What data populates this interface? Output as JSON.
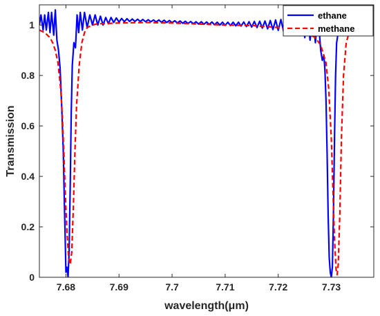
{
  "chart_data": {
    "type": "line",
    "title": "",
    "xlabel": "wavelength(μm)",
    "ylabel": "Transmission",
    "xlim": [
      7.675,
      7.738
    ],
    "ylim": [
      0,
      1.08
    ],
    "x_ticks": [
      {
        "value": 7.68,
        "label": "7.68"
      },
      {
        "value": 7.69,
        "label": "7.69"
      },
      {
        "value": 7.7,
        "label": "7.7"
      },
      {
        "value": 7.71,
        "label": "7.71"
      },
      {
        "value": 7.72,
        "label": "7.72"
      },
      {
        "value": 7.73,
        "label": "7.73"
      }
    ],
    "y_ticks": [
      {
        "value": 0,
        "label": "0"
      },
      {
        "value": 0.2,
        "label": "0.2"
      },
      {
        "value": 0.4,
        "label": "0.4"
      },
      {
        "value": 0.6,
        "label": "0.6"
      },
      {
        "value": 0.8,
        "label": "0.8"
      },
      {
        "value": 1,
        "label": "1"
      }
    ],
    "grid": false,
    "legend_position": "top-right",
    "series": [
      {
        "name": "ethane",
        "color": "#0000ff",
        "style": "solid",
        "points": [
          [
            7.675,
            1.0
          ],
          [
            7.6753,
            1.04
          ],
          [
            7.6757,
            0.98
          ],
          [
            7.676,
            1.04
          ],
          [
            7.6763,
            0.98
          ],
          [
            7.6767,
            1.05
          ],
          [
            7.677,
            0.97
          ],
          [
            7.6773,
            1.05
          ],
          [
            7.6777,
            0.96
          ],
          [
            7.678,
            1.06
          ],
          [
            7.6783,
            0.94
          ],
          [
            7.6786,
            0.9
          ],
          [
            7.6789,
            0.83
          ],
          [
            7.6792,
            0.68
          ],
          [
            7.6795,
            0.5
          ],
          [
            7.6797,
            0.3
          ],
          [
            7.6799,
            0.12
          ],
          [
            7.68,
            0.02
          ],
          [
            7.6802,
            0.04
          ],
          [
            7.6804,
            0.0
          ],
          [
            7.6806,
            0.1
          ],
          [
            7.6808,
            0.35
          ],
          [
            7.681,
            0.65
          ],
          [
            7.6812,
            0.84
          ],
          [
            7.6815,
            0.93
          ],
          [
            7.6818,
            0.91
          ],
          [
            7.6821,
            1.04
          ],
          [
            7.6824,
            0.97
          ],
          [
            7.6827,
            1.05
          ],
          [
            7.6831,
            0.98
          ],
          [
            7.6835,
            1.05
          ],
          [
            7.684,
            0.99
          ],
          [
            7.6845,
            1.04
          ],
          [
            7.685,
            1.0
          ],
          [
            7.6855,
            1.04
          ],
          [
            7.686,
            1.0
          ],
          [
            7.6865,
            1.035
          ],
          [
            7.687,
            1.0
          ],
          [
            7.6875,
            1.03
          ],
          [
            7.688,
            1.005
          ],
          [
            7.6885,
            1.03
          ],
          [
            7.689,
            1.01
          ],
          [
            7.6895,
            1.028
          ],
          [
            7.69,
            1.012
          ],
          [
            7.6905,
            1.026
          ],
          [
            7.691,
            1.013
          ],
          [
            7.6915,
            1.025
          ],
          [
            7.692,
            1.014
          ],
          [
            7.6925,
            1.024
          ],
          [
            7.693,
            1.014
          ],
          [
            7.6935,
            1.023
          ],
          [
            7.694,
            1.014
          ],
          [
            7.6945,
            1.022
          ],
          [
            7.695,
            1.013
          ],
          [
            7.6955,
            1.021
          ],
          [
            7.696,
            1.013
          ],
          [
            7.6965,
            1.02
          ],
          [
            7.697,
            1.012
          ],
          [
            7.6975,
            1.02
          ],
          [
            7.698,
            1.011
          ],
          [
            7.6985,
            1.019
          ],
          [
            7.699,
            1.01
          ],
          [
            7.6995,
            1.018
          ],
          [
            7.7,
            1.009
          ],
          [
            7.7005,
            1.017
          ],
          [
            7.701,
            1.008
          ],
          [
            7.7015,
            1.016
          ],
          [
            7.702,
            1.007
          ],
          [
            7.7025,
            1.015
          ],
          [
            7.703,
            1.006
          ],
          [
            7.7035,
            1.014
          ],
          [
            7.704,
            1.005
          ],
          [
            7.7045,
            1.013
          ],
          [
            7.705,
            1.004
          ],
          [
            7.7055,
            1.013
          ],
          [
            7.706,
            1.003
          ],
          [
            7.7065,
            1.012
          ],
          [
            7.707,
            1.002
          ],
          [
            7.7075,
            1.012
          ],
          [
            7.708,
            1.001
          ],
          [
            7.7085,
            1.011
          ],
          [
            7.709,
            1.0
          ],
          [
            7.7095,
            1.011
          ],
          [
            7.71,
            0.999
          ],
          [
            7.7105,
            1.011
          ],
          [
            7.711,
            0.998
          ],
          [
            7.7115,
            1.011
          ],
          [
            7.712,
            0.997
          ],
          [
            7.7125,
            1.011
          ],
          [
            7.713,
            0.996
          ],
          [
            7.7135,
            1.012
          ],
          [
            7.714,
            0.994
          ],
          [
            7.7145,
            1.013
          ],
          [
            7.715,
            0.992
          ],
          [
            7.7155,
            1.014
          ],
          [
            7.716,
            0.99
          ],
          [
            7.7165,
            1.015
          ],
          [
            7.717,
            0.988
          ],
          [
            7.7175,
            1.016
          ],
          [
            7.718,
            0.985
          ],
          [
            7.7185,
            1.018
          ],
          [
            7.719,
            0.982
          ],
          [
            7.7195,
            1.02
          ],
          [
            7.72,
            0.979
          ],
          [
            7.7205,
            1.022
          ],
          [
            7.721,
            0.975
          ],
          [
            7.7215,
            1.024
          ],
          [
            7.722,
            0.97
          ],
          [
            7.7225,
            1.026
          ],
          [
            7.723,
            0.965
          ],
          [
            7.7235,
            1.028
          ],
          [
            7.724,
            0.958
          ],
          [
            7.7245,
            1.03
          ],
          [
            7.725,
            0.95
          ],
          [
            7.7255,
            1.033
          ],
          [
            7.726,
            0.94
          ],
          [
            7.7265,
            1.036
          ],
          [
            7.727,
            0.93
          ],
          [
            7.7275,
            1.04
          ],
          [
            7.728,
            0.9
          ],
          [
            7.7283,
            0.86
          ],
          [
            7.7286,
            0.88
          ],
          [
            7.7288,
            0.82
          ],
          [
            7.729,
            0.7
          ],
          [
            7.7292,
            0.5
          ],
          [
            7.7294,
            0.25
          ],
          [
            7.7296,
            0.08
          ],
          [
            7.7298,
            0.02
          ],
          [
            7.73,
            0.0
          ],
          [
            7.7302,
            0.04
          ],
          [
            7.7304,
            0.25
          ],
          [
            7.7306,
            0.55
          ],
          [
            7.7308,
            0.8
          ],
          [
            7.731,
            0.93
          ],
          [
            7.7313,
            0.97
          ],
          [
            7.7316,
            1.03
          ],
          [
            7.7319,
            0.97
          ],
          [
            7.7322,
            1.03
          ],
          [
            7.7325,
            0.98
          ],
          [
            7.733,
            1.02
          ],
          [
            7.7335,
            0.99
          ],
          [
            7.734,
            1.015
          ],
          [
            7.7345,
            0.995
          ],
          [
            7.735,
            1.01
          ],
          [
            7.736,
            1.0
          ],
          [
            7.737,
            1.005
          ],
          [
            7.738,
            1.0
          ]
        ]
      },
      {
        "name": "methane",
        "color": "#ff0000",
        "style": "dashed",
        "points": [
          [
            7.675,
            0.98
          ],
          [
            7.6755,
            0.975
          ],
          [
            7.676,
            0.97
          ],
          [
            7.6765,
            0.96
          ],
          [
            7.677,
            0.95
          ],
          [
            7.6775,
            0.93
          ],
          [
            7.678,
            0.9
          ],
          [
            7.6785,
            0.85
          ],
          [
            7.679,
            0.75
          ],
          [
            7.6793,
            0.65
          ],
          [
            7.6796,
            0.5
          ],
          [
            7.6799,
            0.32
          ],
          [
            7.6802,
            0.18
          ],
          [
            7.6805,
            0.08
          ],
          [
            7.6808,
            0.05
          ],
          [
            7.6811,
            0.1
          ],
          [
            7.6814,
            0.28
          ],
          [
            7.6817,
            0.5
          ],
          [
            7.682,
            0.68
          ],
          [
            7.6825,
            0.84
          ],
          [
            7.683,
            0.93
          ],
          [
            7.6835,
            0.97
          ],
          [
            7.684,
            0.99
          ],
          [
            7.685,
            1.0
          ],
          [
            7.686,
            1.005
          ],
          [
            7.69,
            1.008
          ],
          [
            7.695,
            1.01
          ],
          [
            7.7,
            1.008
          ],
          [
            7.705,
            1.004
          ],
          [
            7.71,
            1.0
          ],
          [
            7.715,
            0.998
          ],
          [
            7.72,
            0.99
          ],
          [
            7.723,
            0.98
          ],
          [
            7.725,
            0.97
          ],
          [
            7.727,
            0.95
          ],
          [
            7.728,
            0.92
          ],
          [
            7.729,
            0.85
          ],
          [
            7.7295,
            0.75
          ],
          [
            7.73,
            0.55
          ],
          [
            7.7303,
            0.35
          ],
          [
            7.7306,
            0.15
          ],
          [
            7.7309,
            0.03
          ],
          [
            7.7311,
            0.01
          ],
          [
            7.7313,
            0.05
          ],
          [
            7.7316,
            0.25
          ],
          [
            7.7319,
            0.55
          ],
          [
            7.7323,
            0.8
          ],
          [
            7.7328,
            0.93
          ],
          [
            7.7335,
            0.98
          ],
          [
            7.7345,
            0.995
          ],
          [
            7.736,
            1.0
          ],
          [
            7.738,
            1.002
          ]
        ]
      }
    ]
  }
}
